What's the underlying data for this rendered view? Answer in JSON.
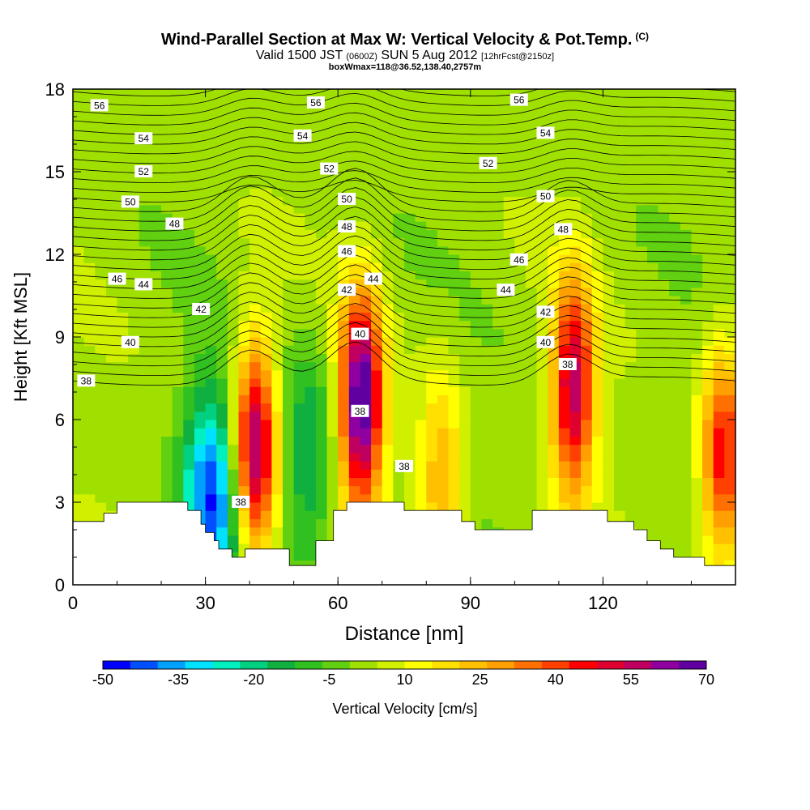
{
  "header": {
    "title": "Wind-Parallel Section at Max W: Vertical Velocity & Pot.Temp.",
    "title_suffix": "(C)",
    "subtitle_a": "Valid 1500 JST",
    "subtitle_b": "(0600Z)",
    "subtitle_c": "SUN 5 Aug 2012",
    "subtitle_d": "[12hrFcst@2150z]",
    "subtitle2": "boxWmax=118@36.52,138.40,2757m"
  },
  "chart_data": {
    "type": "heatmap",
    "title": "Wind-Parallel Section at Max W: Vertical Velocity & Pot.Temp.",
    "xlabel": "Distance [nm]",
    "ylabel": "Height [Kft MSL]",
    "xlim": [
      0,
      150
    ],
    "ylim": [
      0,
      18
    ],
    "x_ticks": [
      0,
      30,
      60,
      90,
      120
    ],
    "y_ticks": [
      0,
      3,
      6,
      9,
      12,
      15,
      18
    ],
    "colorbar": {
      "label": "Vertical Velocity [cm/s]",
      "ticks": [
        -50,
        -35,
        -20,
        -5,
        10,
        25,
        40,
        55,
        70
      ],
      "colors": [
        "#0000ff",
        "#0050ff",
        "#00a0ff",
        "#00e0ff",
        "#00f0c0",
        "#00d080",
        "#10b040",
        "#30c020",
        "#60d010",
        "#a0e000",
        "#d0f000",
        "#ffff00",
        "#ffe000",
        "#ffc000",
        "#ffa000",
        "#ff7000",
        "#ff4000",
        "#ff0000",
        "#e00030",
        "#c00060",
        "#9000a0",
        "#6000a0"
      ]
    },
    "wmax_cells": [
      {
        "x": 40,
        "y": 4.8,
        "w": 60,
        "sign": "up"
      },
      {
        "x": 64,
        "y": 6.5,
        "w": 70,
        "sign": "up"
      },
      {
        "x": 112,
        "y": 7.0,
        "w": 55,
        "sign": "up"
      },
      {
        "x": 146,
        "y": 4.5,
        "w": 45,
        "sign": "up"
      },
      {
        "x": 82,
        "y": 3.5,
        "w": 25,
        "sign": "up"
      },
      {
        "x": 30,
        "y": 3.0,
        "w": -45,
        "sign": "down"
      },
      {
        "x": 52,
        "y": 4.5,
        "w": -20,
        "sign": "down"
      }
    ],
    "theta_labels": [
      {
        "x": 6,
        "y": 17.4,
        "v": "56"
      },
      {
        "x": 55,
        "y": 17.5,
        "v": "56"
      },
      {
        "x": 101,
        "y": 17.6,
        "v": "56"
      },
      {
        "x": 16,
        "y": 16.2,
        "v": "54"
      },
      {
        "x": 52,
        "y": 16.3,
        "v": "54"
      },
      {
        "x": 107,
        "y": 16.4,
        "v": "54"
      },
      {
        "x": 16,
        "y": 15.0,
        "v": "52"
      },
      {
        "x": 58,
        "y": 15.1,
        "v": "52"
      },
      {
        "x": 94,
        "y": 15.3,
        "v": "52"
      },
      {
        "x": 13,
        "y": 13.9,
        "v": "50"
      },
      {
        "x": 62,
        "y": 14.0,
        "v": "50"
      },
      {
        "x": 107,
        "y": 14.1,
        "v": "50"
      },
      {
        "x": 23,
        "y": 13.1,
        "v": "48"
      },
      {
        "x": 62,
        "y": 13.0,
        "v": "48"
      },
      {
        "x": 111,
        "y": 12.9,
        "v": "48"
      },
      {
        "x": 10,
        "y": 11.1,
        "v": "46"
      },
      {
        "x": 62,
        "y": 12.1,
        "v": "46"
      },
      {
        "x": 101,
        "y": 11.8,
        "v": "46"
      },
      {
        "x": 16,
        "y": 10.9,
        "v": "44"
      },
      {
        "x": 68,
        "y": 11.1,
        "v": "44"
      },
      {
        "x": 98,
        "y": 10.7,
        "v": "44"
      },
      {
        "x": 29,
        "y": 10.0,
        "v": "42"
      },
      {
        "x": 62,
        "y": 10.7,
        "v": "42"
      },
      {
        "x": 107,
        "y": 9.9,
        "v": "42"
      },
      {
        "x": 13,
        "y": 8.8,
        "v": "40"
      },
      {
        "x": 65,
        "y": 9.1,
        "v": "40"
      },
      {
        "x": 107,
        "y": 8.8,
        "v": "40"
      },
      {
        "x": 3,
        "y": 7.4,
        "v": "38"
      },
      {
        "x": 38,
        "y": 3.0,
        "v": "38"
      },
      {
        "x": 65,
        "y": 6.3,
        "v": "38"
      },
      {
        "x": 75,
        "y": 4.3,
        "v": "38"
      },
      {
        "x": 112,
        "y": 8.0,
        "v": "38"
      }
    ],
    "terrain": [
      [
        0,
        2.3
      ],
      [
        7,
        2.3
      ],
      [
        7,
        2.6
      ],
      [
        10,
        2.6
      ],
      [
        10,
        3.0
      ],
      [
        26,
        3.0
      ],
      [
        26,
        2.7
      ],
      [
        29,
        2.7
      ],
      [
        29,
        2.2
      ],
      [
        30,
        2.2
      ],
      [
        30,
        1.9
      ],
      [
        32,
        1.9
      ],
      [
        32,
        1.6
      ],
      [
        33,
        1.6
      ],
      [
        33,
        1.3
      ],
      [
        36,
        1.3
      ],
      [
        36,
        1.0
      ],
      [
        39,
        1.0
      ],
      [
        39,
        1.3
      ],
      [
        49,
        1.3
      ],
      [
        49,
        0.7
      ],
      [
        55,
        0.7
      ],
      [
        55,
        1.6
      ],
      [
        59,
        1.6
      ],
      [
        59,
        2.7
      ],
      [
        62,
        2.7
      ],
      [
        62,
        3.0
      ],
      [
        75,
        3.0
      ],
      [
        75,
        2.7
      ],
      [
        88,
        2.7
      ],
      [
        88,
        2.3
      ],
      [
        91,
        2.3
      ],
      [
        91,
        2.0
      ],
      [
        104,
        2.0
      ],
      [
        104,
        2.7
      ],
      [
        121,
        2.7
      ],
      [
        121,
        2.3
      ],
      [
        127,
        2.3
      ],
      [
        127,
        2.0
      ],
      [
        130,
        2.0
      ],
      [
        130,
        1.6
      ],
      [
        133,
        1.6
      ],
      [
        133,
        1.3
      ],
      [
        136,
        1.3
      ],
      [
        136,
        1.0
      ],
      [
        143,
        1.0
      ],
      [
        143,
        0.7
      ],
      [
        150,
        0.7
      ]
    ]
  }
}
